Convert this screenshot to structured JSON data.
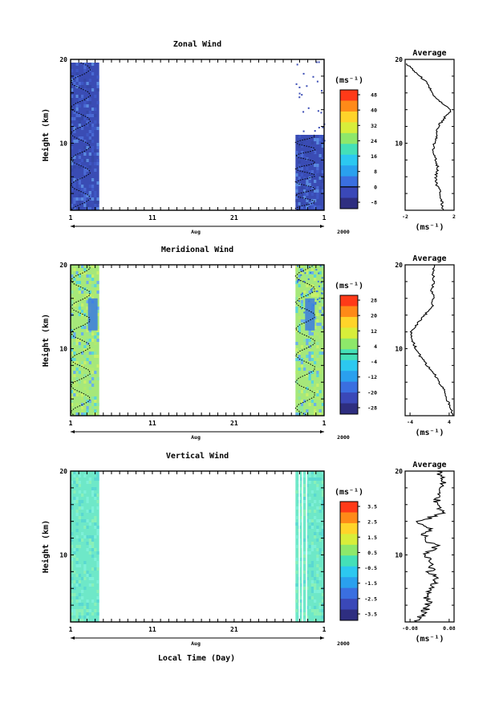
{
  "figure": {
    "xlabel": "Local Time (Day)",
    "month": "Aug",
    "year": "2000",
    "x_ticks": [
      "1",
      "11",
      "21",
      "1"
    ]
  },
  "chart_data": [
    {
      "type": "heatmap",
      "title": "Zonal Wind",
      "ylabel": "Height (km)",
      "ylim": [
        2,
        20
      ],
      "y_ticks": [
        "10",
        "20"
      ],
      "x_ticks": [
        "1",
        "11",
        "21",
        "1"
      ],
      "xlabel": "Aug",
      "xlim_days": [
        1,
        32
      ],
      "data_windows_days": [
        [
          1,
          4.5
        ],
        [
          28.5,
          32
        ]
      ],
      "colorbar": {
        "unit": "(ms⁻¹)",
        "ticks": [
          "48",
          "40",
          "32",
          "24",
          "16",
          "8",
          "0",
          "-8"
        ],
        "range": [
          -8,
          48
        ],
        "zero_contour": true
      },
      "average": {
        "title": "Average",
        "xlabel": "(ms⁻¹)",
        "x_ticks": [
          "-2",
          "2"
        ],
        "xlim": [
          -2,
          2
        ],
        "y_ticks": [
          "10",
          "20"
        ],
        "height_km": [
          2,
          3,
          4,
          5,
          6,
          7,
          8,
          9,
          10,
          11,
          12,
          13,
          14,
          15,
          16,
          17,
          18,
          19,
          19.5
        ],
        "value": [
          1.1,
          1.0,
          0.9,
          0.6,
          0.5,
          0.7,
          0.5,
          0.3,
          0.4,
          0.6,
          0.7,
          1.2,
          1.8,
          0.8,
          0.2,
          -0.1,
          -0.8,
          -1.5,
          -1.9
        ]
      }
    },
    {
      "type": "heatmap",
      "title": "Meridional Wind",
      "ylabel": "Height (km)",
      "ylim": [
        2,
        20
      ],
      "y_ticks": [
        "10",
        "20"
      ],
      "x_ticks": [
        "1",
        "11",
        "21",
        "1"
      ],
      "xlabel": "Aug",
      "xlim_days": [
        1,
        32
      ],
      "data_windows_days": [
        [
          1,
          4.5
        ],
        [
          28.5,
          32
        ]
      ],
      "colorbar": {
        "unit": "(ms⁻¹)",
        "ticks": [
          "28",
          "20",
          "12",
          "4",
          "-4",
          "-12",
          "-20",
          "-28"
        ],
        "range": [
          -28,
          28
        ],
        "zero_contour": true
      },
      "average": {
        "title": "Average",
        "xlabel": "(ms⁻¹)",
        "x_ticks": [
          "-4",
          "4"
        ],
        "xlim": [
          -5,
          5
        ],
        "y_ticks": [
          "10",
          "20"
        ],
        "height_km": [
          2,
          3,
          4,
          5,
          6,
          7,
          8,
          9,
          10,
          11,
          12,
          13,
          14,
          15,
          16,
          17,
          18,
          19,
          20
        ],
        "value": [
          4.8,
          4.2,
          3.5,
          3.0,
          2.0,
          1.0,
          -0.5,
          -1.8,
          -2.8,
          -3.5,
          -3.8,
          -2.5,
          -1.0,
          0.5,
          0.8,
          0.4,
          1.0,
          0.6,
          0.9
        ]
      }
    },
    {
      "type": "heatmap",
      "title": "Vertical Wind",
      "ylabel": "Height (km)",
      "ylim": [
        2,
        20
      ],
      "y_ticks": [
        "10",
        "20"
      ],
      "x_ticks": [
        "1",
        "11",
        "21",
        "1"
      ],
      "xlabel": "Aug",
      "xlim_days": [
        1,
        32
      ],
      "data_windows_days": [
        [
          1,
          4.5
        ],
        [
          28.5,
          32
        ]
      ],
      "colorbar": {
        "unit": "(ms⁻¹)",
        "ticks": [
          "3.5",
          "2.5",
          "1.5",
          "0.5",
          "-0.5",
          "-1.5",
          "-2.5",
          "-3.5"
        ],
        "range": [
          -4,
          4
        ],
        "zero_contour": false
      },
      "average": {
        "title": "Average",
        "xlabel": "(ms⁻¹)",
        "x_ticks": [
          "-0.08",
          "0.08"
        ],
        "xlim": [
          -0.1,
          0.1
        ],
        "y_ticks": [
          "10",
          "20"
        ],
        "height_km": [
          2,
          3,
          4,
          5,
          6,
          7,
          8,
          9,
          10,
          11,
          12,
          13,
          14,
          15,
          16,
          17,
          18,
          19,
          20
        ],
        "value": [
          -0.05,
          -0.03,
          0.0,
          -0.02,
          0.01,
          0.03,
          0.0,
          0.02,
          -0.02,
          0.03,
          -0.03,
          0.0,
          -0.04,
          0.05,
          0.02,
          0.04,
          0.05,
          0.06,
          0.03
        ]
      }
    }
  ]
}
